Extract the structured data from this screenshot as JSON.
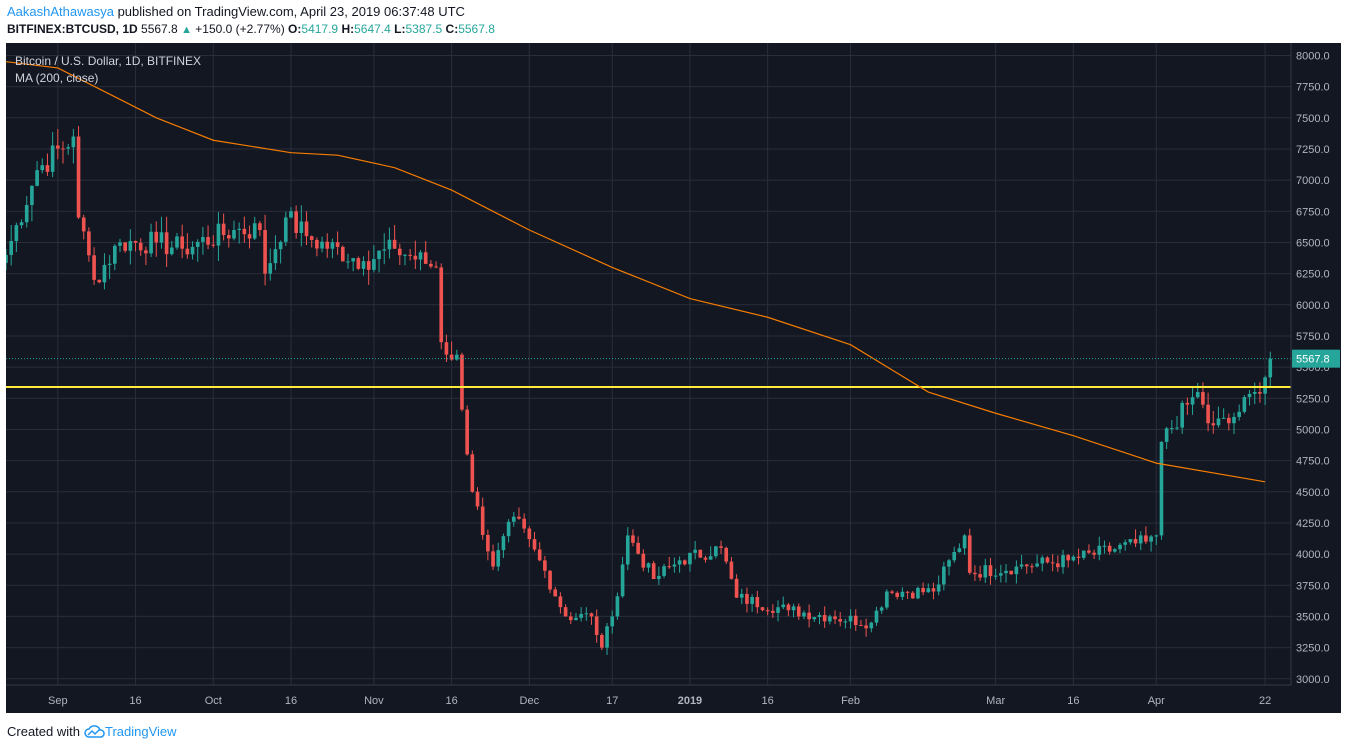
{
  "header": {
    "author": "AakashAthawasya",
    "published_text": "published on TradingView.com, April 23, 2019 06:37:48 UTC"
  },
  "symbol_line": {
    "symbol": "BITFINEX:BTCUSD, 1D",
    "last": "5567.8",
    "change": "+150.0 (+2.77%)",
    "open_label": "O:",
    "open": "5417.9",
    "high_label": "H:",
    "high": "5647.4",
    "low_label": "L:",
    "low": "5387.5",
    "close_label": "C:",
    "close": "5567.8"
  },
  "footer": {
    "created_with": "Created with",
    "brand": "TradingView"
  },
  "colors": {
    "background": "#131722",
    "up": "#26a69a",
    "down": "#ef5350",
    "ma": "#f57c00",
    "support_line": "#ffeb3b",
    "grid": "#2a2e39"
  },
  "chart_data": {
    "type": "candlestick",
    "title": "Bitcoin / U.S. Dollar, 1D, BITFINEX",
    "indicator": "MA (200, close)",
    "last_price_label": "5567.8",
    "ylim": [
      2950,
      8100
    ],
    "y_ticks": [
      "3000.0",
      "3250.0",
      "3500.0",
      "3750.0",
      "4000.0",
      "4250.0",
      "4500.0",
      "4750.0",
      "5000.0",
      "5250.0",
      "5500.0",
      "5750.0",
      "6000.0",
      "6250.0",
      "6500.0",
      "6750.0",
      "7000.0",
      "7250.0",
      "7500.0",
      "7750.0",
      "8000.0"
    ],
    "y_tick_values": [
      3000,
      3250,
      3500,
      3750,
      4000,
      4250,
      4500,
      4750,
      5000,
      5250,
      5500,
      5750,
      6000,
      6250,
      6500,
      6750,
      7000,
      7250,
      7500,
      7750,
      8000
    ],
    "x_ticks": [
      {
        "label": "Sep",
        "date": "2018-09-01",
        "bold": false
      },
      {
        "label": "16",
        "date": "2018-09-16",
        "bold": false
      },
      {
        "label": "Oct",
        "date": "2018-10-01",
        "bold": false
      },
      {
        "label": "16",
        "date": "2018-10-16",
        "bold": false
      },
      {
        "label": "Nov",
        "date": "2018-11-01",
        "bold": false
      },
      {
        "label": "16",
        "date": "2018-11-16",
        "bold": false
      },
      {
        "label": "Dec",
        "date": "2018-12-01",
        "bold": false
      },
      {
        "label": "17",
        "date": "2018-12-17",
        "bold": false
      },
      {
        "label": "2019",
        "date": "2019-01-01",
        "bold": true
      },
      {
        "label": "16",
        "date": "2019-01-16",
        "bold": false
      },
      {
        "label": "Feb",
        "date": "2019-02-01",
        "bold": false
      },
      {
        "label": "Mar",
        "date": "2019-03-01",
        "bold": false
      },
      {
        "label": "16",
        "date": "2019-03-16",
        "bold": false
      },
      {
        "label": "Apr",
        "date": "2019-04-01",
        "bold": false
      },
      {
        "label": "22",
        "date": "2019-04-22",
        "bold": false
      }
    ],
    "x_range": [
      "2018-08-22",
      "2019-04-27"
    ],
    "support_level": 5340,
    "anchors": [
      {
        "date": "2018-08-22",
        "close": 6400
      },
      {
        "date": "2018-08-28",
        "close": 7080
      },
      {
        "date": "2018-09-04",
        "close": 7350
      },
      {
        "date": "2018-09-05",
        "close": 6700
      },
      {
        "date": "2018-09-08",
        "close": 6200
      },
      {
        "date": "2018-09-13",
        "close": 6500
      },
      {
        "date": "2018-09-20",
        "close": 6500
      },
      {
        "date": "2018-09-25",
        "close": 6450
      },
      {
        "date": "2018-10-05",
        "close": 6600
      },
      {
        "date": "2018-10-10",
        "close": 6600
      },
      {
        "date": "2018-10-11",
        "close": 6250
      },
      {
        "date": "2018-10-15",
        "close": 6700
      },
      {
        "date": "2018-10-20",
        "close": 6520
      },
      {
        "date": "2018-10-30",
        "close": 6350
      },
      {
        "date": "2018-11-05",
        "close": 6450
      },
      {
        "date": "2018-11-13",
        "close": 6300
      },
      {
        "date": "2018-11-14",
        "close": 5700
      },
      {
        "date": "2018-11-15",
        "close": 5600
      },
      {
        "date": "2018-11-17",
        "close": 5600
      },
      {
        "date": "2018-11-19",
        "close": 4800
      },
      {
        "date": "2018-11-20",
        "close": 4500
      },
      {
        "date": "2018-11-24",
        "close": 3900
      },
      {
        "date": "2018-11-28",
        "close": 4300
      },
      {
        "date": "2018-12-03",
        "close": 3950
      },
      {
        "date": "2018-12-08",
        "close": 3500
      },
      {
        "date": "2018-12-13",
        "close": 3500
      },
      {
        "date": "2018-12-15",
        "close": 3250
      },
      {
        "date": "2018-12-17",
        "close": 3500
      },
      {
        "date": "2018-12-20",
        "close": 4150
      },
      {
        "date": "2018-12-25",
        "close": 3800
      },
      {
        "date": "2018-12-30",
        "close": 3950
      },
      {
        "date": "2019-01-07",
        "close": 4050
      },
      {
        "date": "2019-01-10",
        "close": 3650
      },
      {
        "date": "2019-01-20",
        "close": 3550
      },
      {
        "date": "2019-01-28",
        "close": 3500
      },
      {
        "date": "2019-02-05",
        "close": 3450
      },
      {
        "date": "2019-02-08",
        "close": 3700
      },
      {
        "date": "2019-02-17",
        "close": 3700
      },
      {
        "date": "2019-02-23",
        "close": 4150
      },
      {
        "date": "2019-02-24",
        "close": 3850
      },
      {
        "date": "2019-03-05",
        "close": 3900
      },
      {
        "date": "2019-03-15",
        "close": 3950
      },
      {
        "date": "2019-03-30",
        "close": 4100
      },
      {
        "date": "2019-04-01",
        "close": 4150
      },
      {
        "date": "2019-04-02",
        "close": 4900
      },
      {
        "date": "2019-04-07",
        "close": 5200
      },
      {
        "date": "2019-04-09",
        "close": 5300
      },
      {
        "date": "2019-04-11",
        "close": 5050
      },
      {
        "date": "2019-04-15",
        "close": 5050
      },
      {
        "date": "2019-04-20",
        "close": 5300
      },
      {
        "date": "2019-04-22",
        "close": 5417.9
      },
      {
        "date": "2019-04-23",
        "close": 5567.8
      }
    ],
    "ma_points": [
      {
        "date": "2018-08-22",
        "value": 7950
      },
      {
        "date": "2018-09-01",
        "value": 7900
      },
      {
        "date": "2018-09-20",
        "value": 7500
      },
      {
        "date": "2018-10-01",
        "value": 7320
      },
      {
        "date": "2018-10-16",
        "value": 7220
      },
      {
        "date": "2018-10-25",
        "value": 7200
      },
      {
        "date": "2018-11-05",
        "value": 7100
      },
      {
        "date": "2018-11-16",
        "value": 6920
      },
      {
        "date": "2018-12-01",
        "value": 6600
      },
      {
        "date": "2018-12-17",
        "value": 6300
      },
      {
        "date": "2019-01-01",
        "value": 6050
      },
      {
        "date": "2019-01-16",
        "value": 5900
      },
      {
        "date": "2019-02-01",
        "value": 5680
      },
      {
        "date": "2019-02-16",
        "value": 5300
      },
      {
        "date": "2019-03-01",
        "value": 5130
      },
      {
        "date": "2019-03-16",
        "value": 4950
      },
      {
        "date": "2019-04-01",
        "value": 4730
      },
      {
        "date": "2019-04-22",
        "value": 4580
      }
    ]
  }
}
